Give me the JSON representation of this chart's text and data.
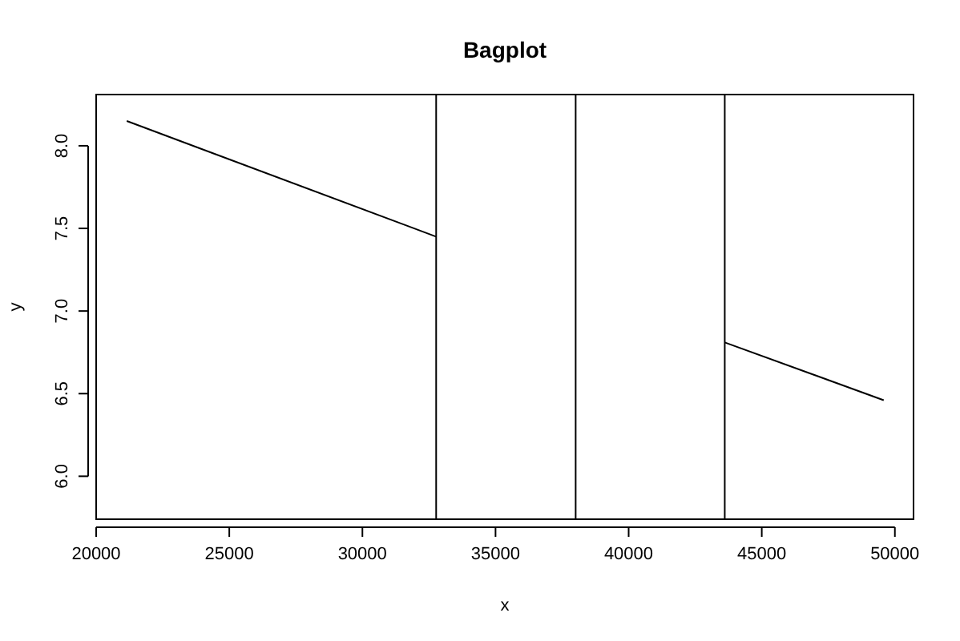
{
  "chart_data": {
    "type": "line",
    "title": "Bagplot",
    "xlabel": "x",
    "ylabel": "y",
    "xlim": [
      20000,
      50700
    ],
    "ylim": [
      5.74,
      8.31
    ],
    "xticks": [
      20000,
      25000,
      30000,
      35000,
      40000,
      45000,
      50000
    ],
    "yticks": [
      {
        "value": 6,
        "label": "6.0"
      },
      6.5,
      {
        "value": 7,
        "label": "7.0"
      },
      7.5,
      {
        "value": 8,
        "label": "8.0"
      }
    ],
    "series": [
      {
        "color": "#000000",
        "x": [
          21150,
          32770
        ],
        "values": [
          8.15,
          7.45
        ]
      },
      {
        "color": "#000000",
        "x": [
          43610,
          49580
        ],
        "values": [
          6.81,
          6.46
        ]
      }
    ],
    "ref_lines": [
      {
        "axis": "x",
        "value": 32770,
        "color": "#000000"
      },
      {
        "axis": "x",
        "value": 38010,
        "color": "#000000"
      },
      {
        "axis": "x",
        "value": 43610,
        "color": "#000000"
      }
    ],
    "grid": false,
    "marker": "none",
    "line_style": "solid"
  }
}
